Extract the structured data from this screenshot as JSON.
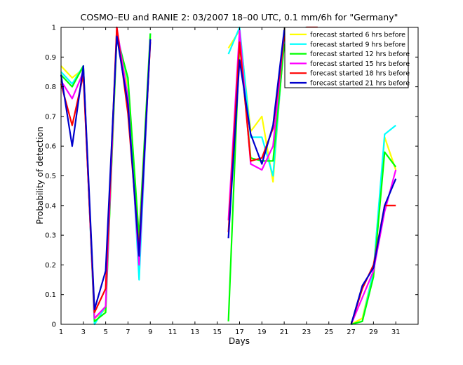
{
  "chart_data": {
    "type": "line",
    "title": "COSMO–EU and RANIE 2: 03/2007 18–00 UTC, 0.1 mm/6h for \"Germany\"",
    "xlabel": "Days",
    "ylabel": "Probability of detection",
    "xlim": [
      1,
      33
    ],
    "ylim": [
      0,
      1
    ],
    "x_ticks": [
      1,
      3,
      5,
      7,
      9,
      11,
      13,
      15,
      17,
      19,
      21,
      23,
      25,
      27,
      29,
      31
    ],
    "y_ticks": [
      0,
      0.1,
      0.2,
      0.3,
      0.4,
      0.5,
      0.6,
      0.7,
      0.8,
      0.9,
      1
    ],
    "grid": false,
    "legend_position": "top-right",
    "x": [
      1,
      2,
      3,
      4,
      5,
      6,
      7,
      8,
      9,
      10,
      11,
      12,
      13,
      14,
      15,
      16,
      17,
      18,
      19,
      20,
      21,
      22,
      23,
      24,
      25,
      26,
      27,
      28,
      29,
      30,
      31
    ],
    "series": [
      {
        "name": "forecast started  6 hrs before",
        "color": "#ffff00",
        "values": [
          0.87,
          0.83,
          0.86,
          0.02,
          0.05,
          0.97,
          0.8,
          0.25,
          0.97,
          null,
          null,
          null,
          null,
          null,
          null,
          0.93,
          0.99,
          0.65,
          0.7,
          0.48,
          0.97,
          0.99,
          0.99,
          0.98,
          null,
          null,
          0.0,
          0.02,
          0.18,
          0.63,
          0.52
        ]
      },
      {
        "name": "forecast started  9 hrs before",
        "color": "#00ffff",
        "values": [
          0.85,
          0.81,
          0.87,
          0.0,
          0.06,
          0.98,
          0.82,
          0.15,
          0.98,
          null,
          null,
          null,
          null,
          null,
          null,
          0.91,
          1.0,
          0.63,
          0.63,
          0.5,
          0.96,
          0.99,
          1.0,
          1.0,
          null,
          null,
          0.0,
          0.01,
          0.18,
          0.64,
          0.67
        ]
      },
      {
        "name": "forecast started 12 hrs before",
        "color": "#00ff00",
        "values": [
          0.84,
          0.8,
          0.87,
          0.01,
          0.04,
          0.97,
          0.83,
          0.29,
          0.98,
          null,
          null,
          null,
          null,
          null,
          null,
          0.01,
          0.95,
          0.56,
          0.55,
          0.55,
          0.94,
          0.99,
          0.99,
          0.97,
          null,
          null,
          0.0,
          0.01,
          0.16,
          0.58,
          0.53
        ]
      },
      {
        "name": "forecast started 15 hrs before",
        "color": "#ff00ff",
        "values": [
          0.82,
          0.76,
          0.85,
          0.02,
          0.06,
          1.0,
          0.76,
          0.2,
          0.96,
          null,
          null,
          null,
          null,
          null,
          null,
          0.35,
          0.99,
          0.54,
          0.52,
          0.6,
          0.98,
          0.99,
          0.99,
          0.99,
          null,
          null,
          0.0,
          0.09,
          0.18,
          0.38,
          0.52
        ]
      },
      {
        "name": "forecast started 18 hrs before",
        "color": "#ff0000",
        "values": [
          0.81,
          0.67,
          0.84,
          0.04,
          0.12,
          1.0,
          0.71,
          0.25,
          0.95,
          null,
          null,
          null,
          null,
          null,
          null,
          0.31,
          0.95,
          0.55,
          0.56,
          0.66,
          0.97,
          0.98,
          1.0,
          1.0,
          null,
          null,
          0.0,
          0.12,
          0.2,
          0.4,
          0.4
        ]
      },
      {
        "name": "forecast started 21 hrs before",
        "color": "#0000cc",
        "values": [
          0.84,
          0.6,
          0.87,
          0.05,
          0.18,
          0.97,
          0.74,
          0.23,
          0.96,
          null,
          null,
          null,
          null,
          null,
          null,
          0.29,
          0.89,
          0.64,
          0.54,
          0.67,
          0.99,
          0.98,
          0.99,
          0.99,
          null,
          null,
          0.0,
          0.13,
          0.19,
          0.4,
          0.49
        ]
      }
    ]
  }
}
